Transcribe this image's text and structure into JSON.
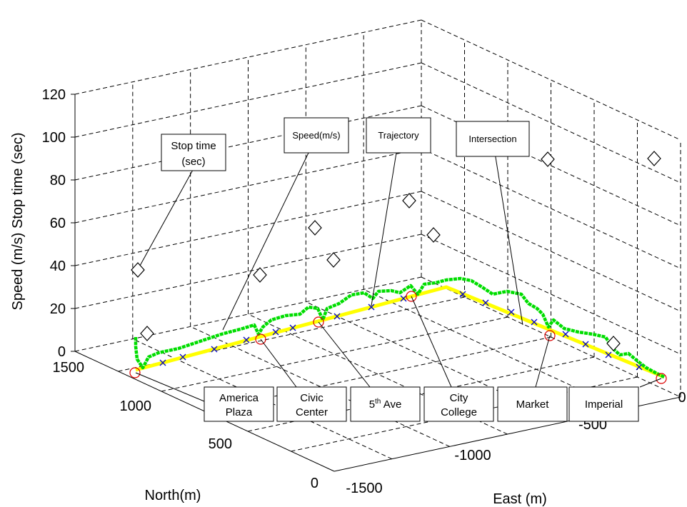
{
  "chart_data": {
    "type": "scatter",
    "projection": "3d",
    "grid": true,
    "zlabel": "Speed (m/s) Stop time (sec)",
    "xlabel": "North(m)",
    "ylabel": "East (m)",
    "z_ticks": [
      "0",
      "20",
      "40",
      "60",
      "80",
      "100",
      "120"
    ],
    "north_ticks": [
      "0",
      "500",
      "1000",
      "1500"
    ],
    "east_ticks": [
      "-1500",
      "-1000",
      "-500",
      "0"
    ],
    "zlim": [
      0,
      120
    ],
    "annotations": {
      "stop_time": [
        "Stop time",
        "(sec)"
      ],
      "speed": "Speed(m/s)",
      "trajectory": "Trajectory",
      "intersection": "Intersection"
    },
    "stations": [
      {
        "lines": [
          "America",
          "Plaza"
        ]
      },
      {
        "lines": [
          "Civic",
          "Center"
        ]
      },
      {
        "lines": [
          "5",
          "th",
          " Ave"
        ]
      },
      {
        "lines": [
          "City",
          "College"
        ]
      },
      {
        "lines": [
          "Market"
        ]
      },
      {
        "lines": [
          "Imperial"
        ]
      }
    ],
    "stop_times_sec": [
      38,
      8,
      35,
      58,
      42,
      70,
      55,
      90,
      4,
      90
    ],
    "series": [
      {
        "name": "Trajectory",
        "color": "#ffff00"
      },
      {
        "name": "Speed(m/s)",
        "color": "#00dd00"
      },
      {
        "name": "Stop time (sec)",
        "marker": "diamond",
        "color": "#000000"
      },
      {
        "name": "Intersection",
        "marker": "x",
        "color": "#0000cc"
      },
      {
        "name": "Station",
        "marker": "circle",
        "color": "#dd0000"
      }
    ]
  }
}
